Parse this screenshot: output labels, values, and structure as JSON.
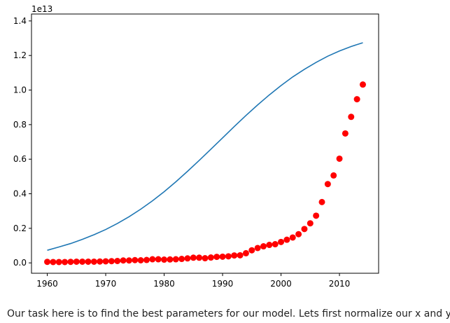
{
  "chart_data": {
    "type": "scatter",
    "axis_offset_label": "1e13",
    "xlim": [
      1957.3,
      2016.7
    ],
    "ylim": [
      -0.06,
      1.44
    ],
    "x_ticks": [
      1960,
      1970,
      1980,
      1990,
      2000,
      2010
    ],
    "y_ticks": [
      0.0,
      0.2,
      0.4,
      0.6,
      0.8,
      1.0,
      1.2,
      1.4
    ],
    "x_tick_labels": [
      "1960",
      "1970",
      "1980",
      "1990",
      "2000",
      "2010"
    ],
    "y_tick_labels": [
      "0.0",
      "0.2",
      "0.4",
      "0.6",
      "0.8",
      "1.0",
      "1.2",
      "1.4"
    ],
    "grid": false,
    "series": [
      {
        "kind": "line",
        "color": "#1f77b4",
        "x": [
          1960,
          1962,
          1964,
          1966,
          1968,
          1970,
          1972,
          1974,
          1976,
          1978,
          1980,
          1982,
          1984,
          1986,
          1988,
          1990,
          1992,
          1994,
          1996,
          1998,
          2000,
          2002,
          2004,
          2006,
          2008,
          2010,
          2012,
          2014
        ],
        "y": [
          0.073,
          0.092,
          0.112,
          0.136,
          0.163,
          0.193,
          0.228,
          0.267,
          0.311,
          0.359,
          0.412,
          0.469,
          0.53,
          0.593,
          0.658,
          0.723,
          0.789,
          0.853,
          0.914,
          0.972,
          1.026,
          1.076,
          1.12,
          1.16,
          1.196,
          1.226,
          1.252,
          1.274
        ]
      },
      {
        "kind": "scatter",
        "color": "#ff0000",
        "x": [
          1960,
          1961,
          1962,
          1963,
          1964,
          1965,
          1966,
          1967,
          1968,
          1969,
          1970,
          1971,
          1972,
          1973,
          1974,
          1975,
          1976,
          1977,
          1978,
          1979,
          1980,
          1981,
          1982,
          1983,
          1984,
          1985,
          1986,
          1987,
          1988,
          1989,
          1990,
          1991,
          1992,
          1993,
          1994,
          1995,
          1996,
          1997,
          1998,
          1999,
          2000,
          2001,
          2002,
          2003,
          2004,
          2005,
          2006,
          2007,
          2008,
          2009,
          2010,
          2011,
          2012,
          2013,
          2014
        ],
        "y": [
          0.006,
          0.005,
          0.005,
          0.005,
          0.006,
          0.007,
          0.007,
          0.007,
          0.007,
          0.008,
          0.009,
          0.01,
          0.011,
          0.014,
          0.014,
          0.016,
          0.015,
          0.017,
          0.021,
          0.021,
          0.019,
          0.02,
          0.021,
          0.023,
          0.026,
          0.03,
          0.03,
          0.027,
          0.031,
          0.035,
          0.036,
          0.038,
          0.043,
          0.044,
          0.056,
          0.073,
          0.086,
          0.096,
          0.104,
          0.108,
          0.121,
          0.134,
          0.147,
          0.166,
          0.196,
          0.229,
          0.273,
          0.352,
          0.456,
          0.506,
          0.603,
          0.749,
          0.845,
          0.947,
          1.032
        ]
      }
    ]
  },
  "caption": "Our task here is to find the best parameters for our model. Lets first normalize our x and y:"
}
